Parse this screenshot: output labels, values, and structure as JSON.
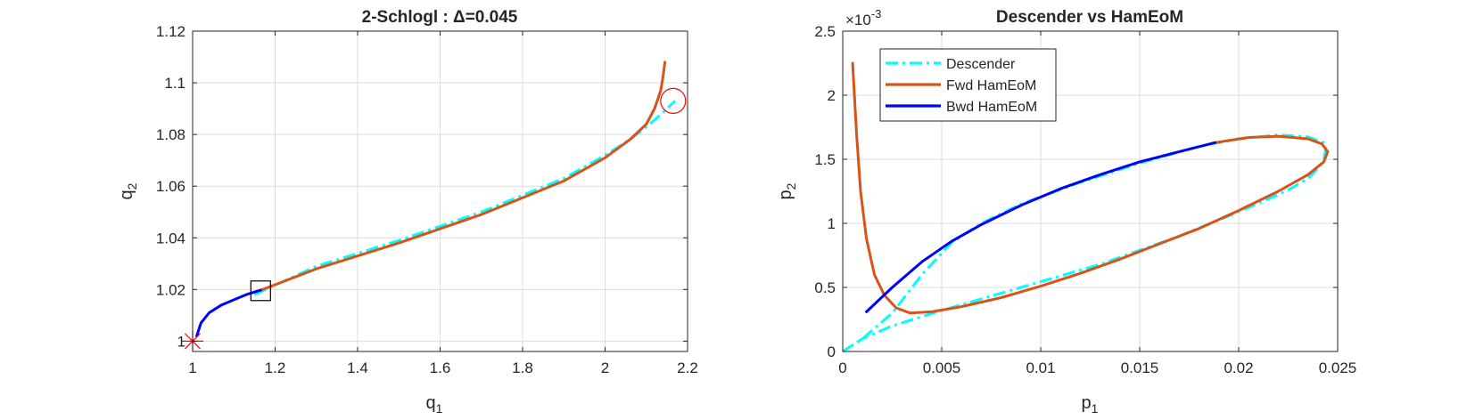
{
  "chart_data": [
    {
      "type": "line",
      "title": "2-Schlogl : Δ=0.045",
      "xlabel": "q",
      "xlabel_sub": "1",
      "ylabel": "q",
      "ylabel_sub": "2",
      "xlim": [
        1,
        2.2
      ],
      "ylim": [
        0.996,
        1.12
      ],
      "xticks": [
        1,
        1.2,
        1.4,
        1.6,
        1.8,
        2,
        2.2
      ],
      "xtick_labels": [
        "1",
        "1.2",
        "1.4",
        "1.6",
        "1.8",
        "2",
        "2.2"
      ],
      "yticks": [
        1,
        1.02,
        1.04,
        1.06,
        1.08,
        1.1,
        1.12
      ],
      "ytick_labels": [
        "1",
        "1.02",
        "1.04",
        "1.06",
        "1.08",
        "1.1",
        "1.12"
      ],
      "grid": true,
      "series": [
        {
          "color": "#00ffff",
          "style": "dashdot",
          "width": 3,
          "x": [
            1.15,
            1.3,
            1.5,
            1.7,
            1.9,
            2.0,
            2.06,
            2.1,
            2.13,
            2.17
          ],
          "y": [
            1.018,
            1.029,
            1.039,
            1.05,
            1.063,
            1.072,
            1.078,
            1.083,
            1.087,
            1.093
          ]
        },
        {
          "color": "#0000ff",
          "style": "solid",
          "width": 3,
          "x": [
            1.01,
            1.02,
            1.04,
            1.07,
            1.1,
            1.13,
            1.15,
            1.17
          ],
          "y": [
            1.002,
            1.007,
            1.011,
            1.014,
            1.016,
            1.018,
            1.019,
            1.02
          ]
        },
        {
          "color": "#d95319",
          "style": "solid",
          "width": 3,
          "x": [
            1.17,
            1.3,
            1.5,
            1.7,
            1.9,
            2.0,
            2.06,
            2.1,
            2.12,
            2.135,
            2.14,
            2.145
          ],
          "y": [
            1.02,
            1.028,
            1.038,
            1.049,
            1.062,
            1.071,
            1.078,
            1.084,
            1.09,
            1.097,
            1.102,
            1.108
          ]
        }
      ],
      "markers": [
        {
          "type": "asterisk",
          "x": 1.0,
          "y": 1.0,
          "color": "#ff0000"
        },
        {
          "type": "square",
          "x": 1.165,
          "y": 1.0195,
          "color": "#000000"
        },
        {
          "type": "circle",
          "x": 2.165,
          "y": 1.093,
          "color": "#ff0000"
        }
      ]
    },
    {
      "type": "line",
      "title": "Descender vs HamEoM",
      "xlabel": "p",
      "xlabel_sub": "1",
      "ylabel": "p",
      "ylabel_sub": "2",
      "y_exponent_label": "×10",
      "y_exponent_power": "-3",
      "xlim": [
        0,
        0.025
      ],
      "ylim": [
        0,
        2.5
      ],
      "xticks": [
        0,
        0.005,
        0.01,
        0.015,
        0.02,
        0.025
      ],
      "xtick_labels": [
        "0",
        "0.005",
        "0.01",
        "0.015",
        "0.02",
        "0.025"
      ],
      "yticks": [
        0,
        0.5,
        1,
        1.5,
        2,
        2.5
      ],
      "ytick_labels": [
        "0",
        "0.5",
        "1",
        "1.5",
        "2",
        "2.5"
      ],
      "grid": true,
      "legend": "top-left",
      "series": [
        {
          "name": "Descender",
          "color": "#00ffff",
          "style": "dashdot",
          "width": 3,
          "x": [
            0,
            0.001,
            0.0025,
            0.004,
            0.0055,
            0.007,
            0.009,
            0.012,
            0.015,
            0.018,
            0.02,
            0.022,
            0.0235,
            0.0243,
            0.0244,
            0.0243,
            0.024,
            0.0235,
            0.0225,
            0.0215,
            0.02,
            0.017,
            0.013,
            0.009,
            0.005,
            0.0025,
            0.001,
            0
          ],
          "y": [
            0,
            0.1,
            0.3,
            0.6,
            0.85,
            1.0,
            1.15,
            1.32,
            1.47,
            1.6,
            1.66,
            1.69,
            1.675,
            1.63,
            1.58,
            1.5,
            1.43,
            1.35,
            1.26,
            1.19,
            1.09,
            0.9,
            0.68,
            0.5,
            0.32,
            0.2,
            0.1,
            0
          ]
        },
        {
          "name": "Fwd HamEoM",
          "color": "#d95319",
          "style": "solid",
          "width": 3,
          "x": [
            0.0005,
            0.0007,
            0.0009,
            0.0012,
            0.0016,
            0.0021,
            0.0027,
            0.0034,
            0.0045,
            0.006,
            0.008,
            0.01,
            0.012,
            0.014,
            0.016,
            0.018,
            0.02,
            0.022,
            0.0235,
            0.0243,
            0.0245,
            0.0242,
            0.0235,
            0.022,
            0.0205,
            0.0188
          ],
          "y": [
            2.25,
            1.7,
            1.25,
            0.88,
            0.6,
            0.44,
            0.34,
            0.3,
            0.31,
            0.35,
            0.42,
            0.51,
            0.61,
            0.72,
            0.84,
            0.96,
            1.1,
            1.25,
            1.38,
            1.48,
            1.56,
            1.62,
            1.66,
            1.68,
            1.67,
            1.63
          ]
        },
        {
          "name": "Bwd HamEoM",
          "color": "#0000ff",
          "style": "solid",
          "width": 3,
          "x": [
            0.0012,
            0.0025,
            0.004,
            0.0055,
            0.007,
            0.009,
            0.011,
            0.013,
            0.015,
            0.017,
            0.0188
          ],
          "y": [
            0.31,
            0.5,
            0.7,
            0.86,
            0.99,
            1.14,
            1.27,
            1.38,
            1.48,
            1.56,
            1.63
          ]
        }
      ]
    }
  ]
}
